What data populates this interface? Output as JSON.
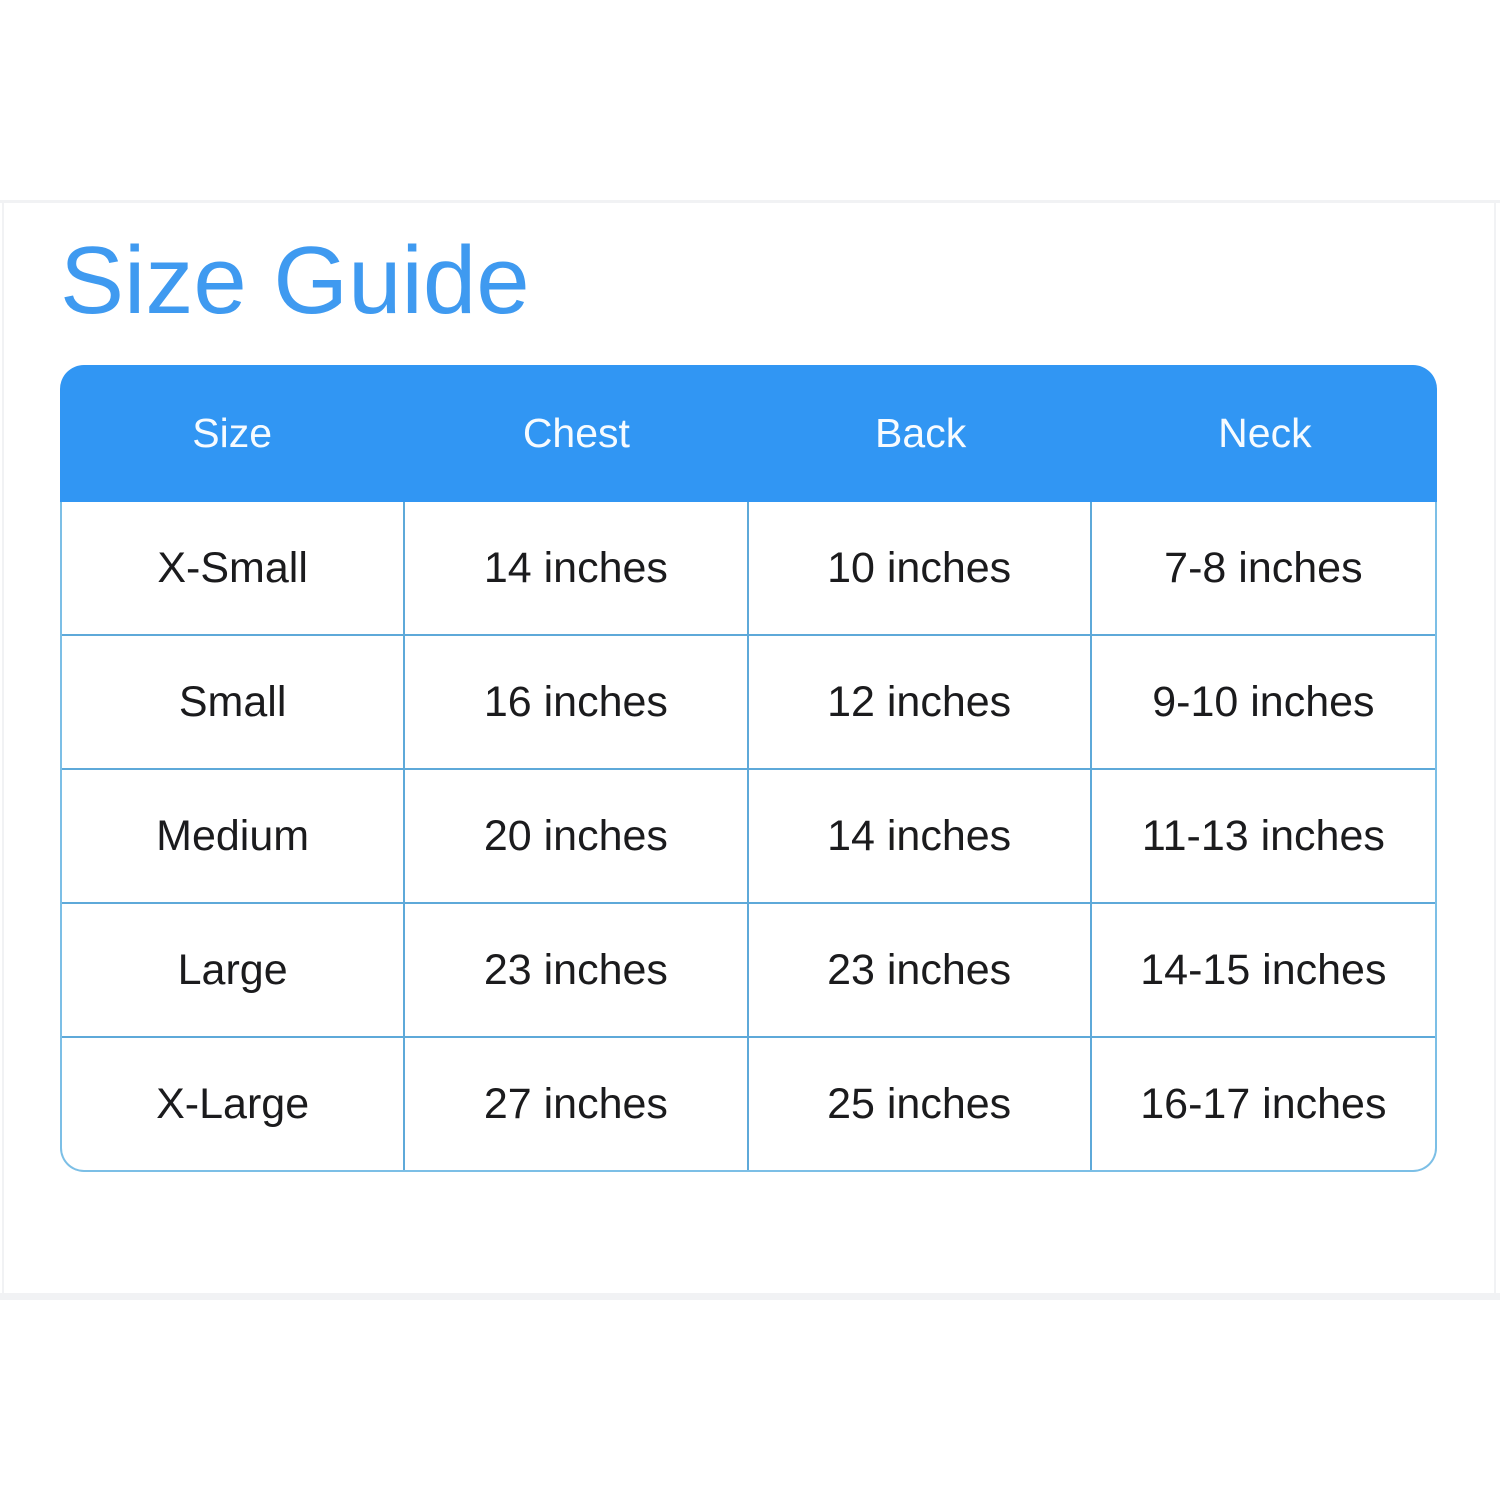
{
  "page": {
    "title": "Size Guide"
  },
  "size_table": {
    "headers": [
      "Size",
      "Chest",
      "Back",
      "Neck"
    ],
    "rows": [
      [
        "X-Small",
        "14 inches",
        "10 inches",
        "7-8 inches"
      ],
      [
        "Small",
        "16 inches",
        "12 inches",
        "9-10 inches"
      ],
      [
        "Medium",
        "20 inches",
        "14 inches",
        "11-13 inches"
      ],
      [
        "Large",
        "23 inches",
        "23 inches",
        "14-15 inches"
      ],
      [
        "X-Large",
        "27 inches",
        "25 inches",
        "16-17 inches"
      ]
    ]
  },
  "colors": {
    "title_text": "#3f9af0",
    "header_bg": "#3196f3",
    "header_text": "#f6fbff",
    "grid_line": "#5ea9d9",
    "outer_border": "#7cbfe6",
    "body_text": "#1b1b1d",
    "divider_gray": "#f1f2f4"
  }
}
